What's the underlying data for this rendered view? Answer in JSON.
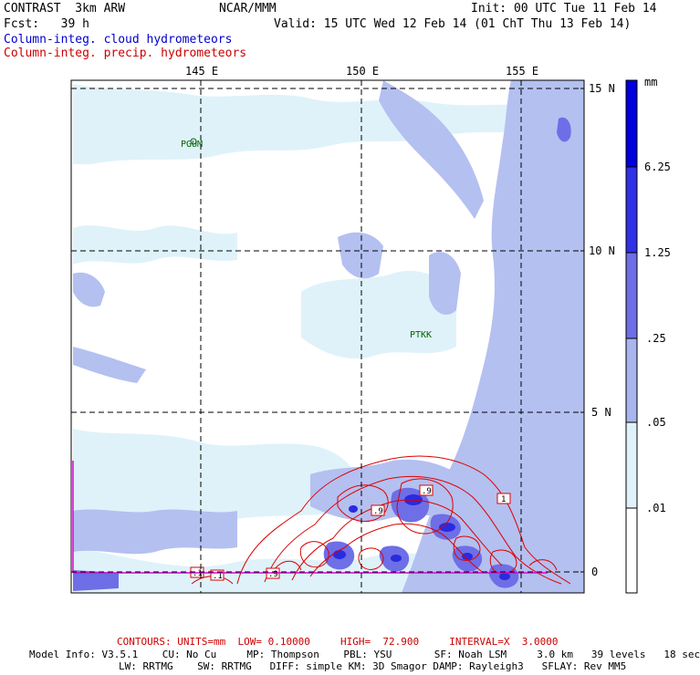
{
  "header": {
    "model": "CONTRAST  3km ARW",
    "forecast": "Fcst:   39 h",
    "org": "NCAR/MMM",
    "init": "Init: 00 UTC Tue 11 Feb 14",
    "valid": "Valid: 15 UTC Wed 12 Feb 14 (01 ChT Thu 13 Feb 14)",
    "field_cloud": "Column-integ. cloud hydrometeors",
    "field_precip": "Column-integ. precip. hydrometeors"
  },
  "map": {
    "lon_labels": [
      "145 E",
      "150 E",
      "155 E"
    ],
    "lat_labels": [
      "15 N",
      "10 N",
      "5 N",
      "0"
    ],
    "stations": [
      "PGUM",
      "PTKK"
    ],
    "contour_labels": [
      ".9",
      ".9",
      "1",
      ".1",
      ".1",
      ".9"
    ]
  },
  "legend": {
    "units": "mm",
    "levels": [
      "6.25",
      "1.25",
      ".25",
      ".05",
      ".01"
    ],
    "colors": [
      "#0000dd",
      "#3030e6",
      "#6e6ee6",
      "#a9b5ee",
      "#dff2fa",
      "#ffffff"
    ]
  },
  "footer": {
    "contours_prefix": "CONTOURS:",
    "contours_detail": "UNITS=mm  LOW= 0.10000     HIGH=  72.900     INTERVAL=X  3.0000",
    "model_info_1": "Model Info: V3.5.1    CU: No Cu     MP: Thompson    PBL: YSU       SF: Noah LSM     3.0 km   39 levels   18 sec",
    "model_info_2": "LW: RRTMG    SW: RRTMG   DIFF: simple KM: 3D Smagor DAMP: Rayleigh3   SFLAY: Rev MM5"
  }
}
